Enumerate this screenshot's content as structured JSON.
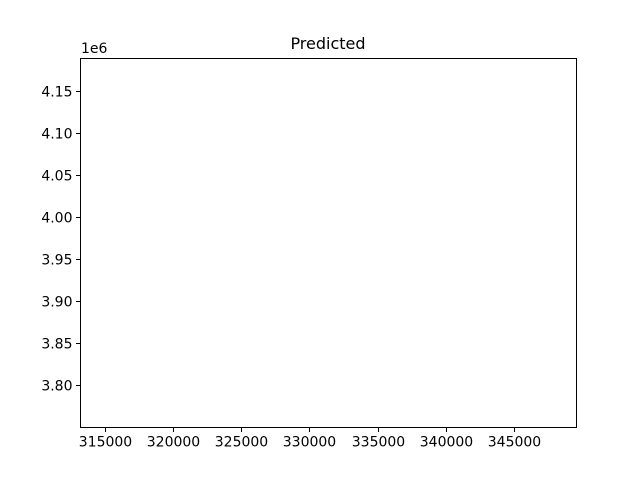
{
  "chart_data": {
    "type": "scatter",
    "title": "Predicted",
    "xlabel": "",
    "ylabel": "",
    "xlim": [
      313200,
      349600
    ],
    "ylim": [
      3750000,
      4188000
    ],
    "x_ticks": [
      315000,
      320000,
      325000,
      330000,
      335000,
      340000,
      345000
    ],
    "x_tick_labels": [
      "315000",
      "320000",
      "325000",
      "330000",
      "335000",
      "340000",
      "345000"
    ],
    "y_ticks": [
      3.8,
      3.85,
      3.9,
      3.95,
      4.0,
      4.05,
      4.1,
      4.15
    ],
    "y_tick_labels": [
      "3.80",
      "3.85",
      "3.90",
      "3.95",
      "4.00",
      "4.05",
      "4.10",
      "4.15"
    ],
    "y_offset_label": "1e6",
    "series": [],
    "grid": false
  }
}
